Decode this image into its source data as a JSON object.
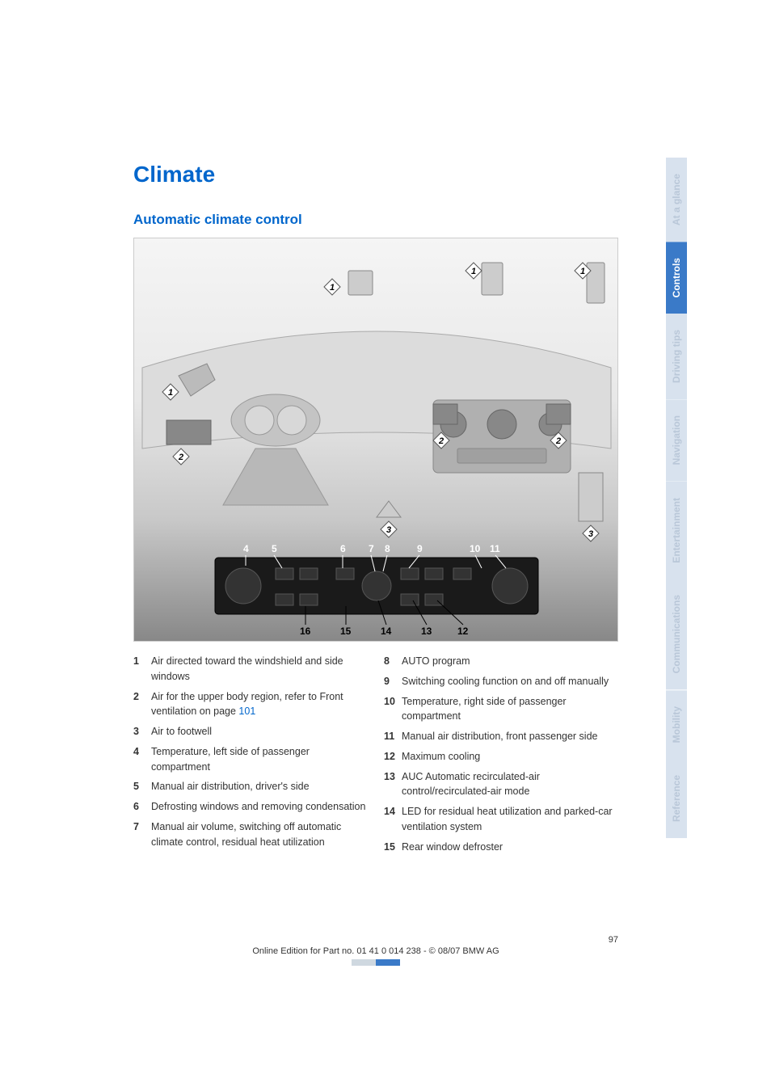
{
  "title": "Climate",
  "subtitle": "Automatic climate control",
  "dashboard": {
    "diamond_callouts": [
      "1",
      "1",
      "1",
      "1",
      "2",
      "2",
      "2",
      "2",
      "3",
      "3"
    ],
    "mid_numbers": [
      "4",
      "5",
      "6",
      "7",
      "8",
      "9",
      "10",
      "11"
    ],
    "bottom_numbers": [
      "16",
      "15",
      "14",
      "13",
      "12"
    ]
  },
  "legend_left": [
    {
      "n": "1",
      "text": "Air directed toward the windshield and side windows"
    },
    {
      "n": "2",
      "text": "Air for the upper body region, refer to Front ventilation on page ",
      "page": "101"
    },
    {
      "n": "3",
      "text": "Air to footwell"
    },
    {
      "n": "4",
      "text": "Temperature, left side of passenger compartment"
    },
    {
      "n": "5",
      "text": "Manual air distribution, driver's side"
    },
    {
      "n": "6",
      "text": "Defrosting windows and removing condensation"
    },
    {
      "n": "7",
      "text": "Manual air volume, switching off automatic climate control, residual heat utilization"
    }
  ],
  "legend_right": [
    {
      "n": "8",
      "text": "AUTO program"
    },
    {
      "n": "9",
      "text": "Switching cooling function on and off manually"
    },
    {
      "n": "10",
      "text": "Temperature, right side of passenger compartment"
    },
    {
      "n": "11",
      "text": "Manual air distribution, front passenger side"
    },
    {
      "n": "12",
      "text": "Maximum cooling"
    },
    {
      "n": "13",
      "text": "AUC Automatic recirculated-air control/recirculated-air mode"
    },
    {
      "n": "14",
      "text": "LED for residual heat utilization and parked-car ventilation system"
    },
    {
      "n": "15",
      "text": "Rear window defroster"
    }
  ],
  "footer": {
    "page_number": "97",
    "line": "Online Edition for Part no. 01 41 0 014 238 - © 08/07 BMW AG"
  },
  "tabs": [
    {
      "label": "At a glance",
      "bg": "#d8e2ee",
      "color": "#b9c7d8"
    },
    {
      "label": "Controls",
      "bg": "#3a7ac8",
      "color": "#ffffff"
    },
    {
      "label": "Driving tips",
      "bg": "#d8e2ee",
      "color": "#b9c7d8"
    },
    {
      "label": "Navigation",
      "bg": "#d8e2ee",
      "color": "#b9c7d8"
    },
    {
      "label": "Entertainment",
      "bg": "#d8e2ee",
      "color": "#b9c7d8"
    },
    {
      "label": "Communications",
      "bg": "#d8e2ee",
      "color": "#b9c7d8"
    },
    {
      "label": "Mobility",
      "bg": "#d8e2ee",
      "color": "#b9c7d8"
    },
    {
      "label": "Reference",
      "bg": "#d8e2ee",
      "color": "#b9c7d8"
    }
  ],
  "accent_blue": "#0066cc"
}
